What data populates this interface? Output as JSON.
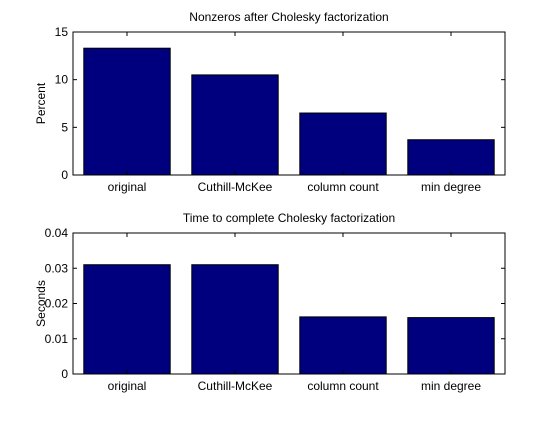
{
  "colors": {
    "bar": "#00007f",
    "axis": "#000000",
    "background": "#ffffff"
  },
  "chart_data": [
    {
      "type": "bar",
      "title": "Nonzeros after Cholesky factorization",
      "xlabel": "",
      "ylabel": "Percent",
      "categories": [
        "original",
        "Cuthill-McKee",
        "column count",
        "min degree"
      ],
      "values": [
        13.3,
        10.5,
        6.5,
        3.7
      ],
      "ylim": [
        0,
        15
      ],
      "yticks": [
        0,
        5,
        10,
        15
      ],
      "ytick_labels": [
        "0",
        "5",
        "10",
        "15"
      ],
      "grid": false
    },
    {
      "type": "bar",
      "title": "Time to complete Cholesky factorization",
      "xlabel": "",
      "ylabel": "Seconds",
      "categories": [
        "original",
        "Cuthill-McKee",
        "column count",
        "min degree"
      ],
      "values": [
        0.031,
        0.031,
        0.0162,
        0.016
      ],
      "ylim": [
        0,
        0.04
      ],
      "yticks": [
        0,
        0.01,
        0.02,
        0.03,
        0.04
      ],
      "ytick_labels": [
        "0",
        "0.01",
        "0.02",
        "0.03",
        "0.04"
      ],
      "grid": false
    }
  ]
}
